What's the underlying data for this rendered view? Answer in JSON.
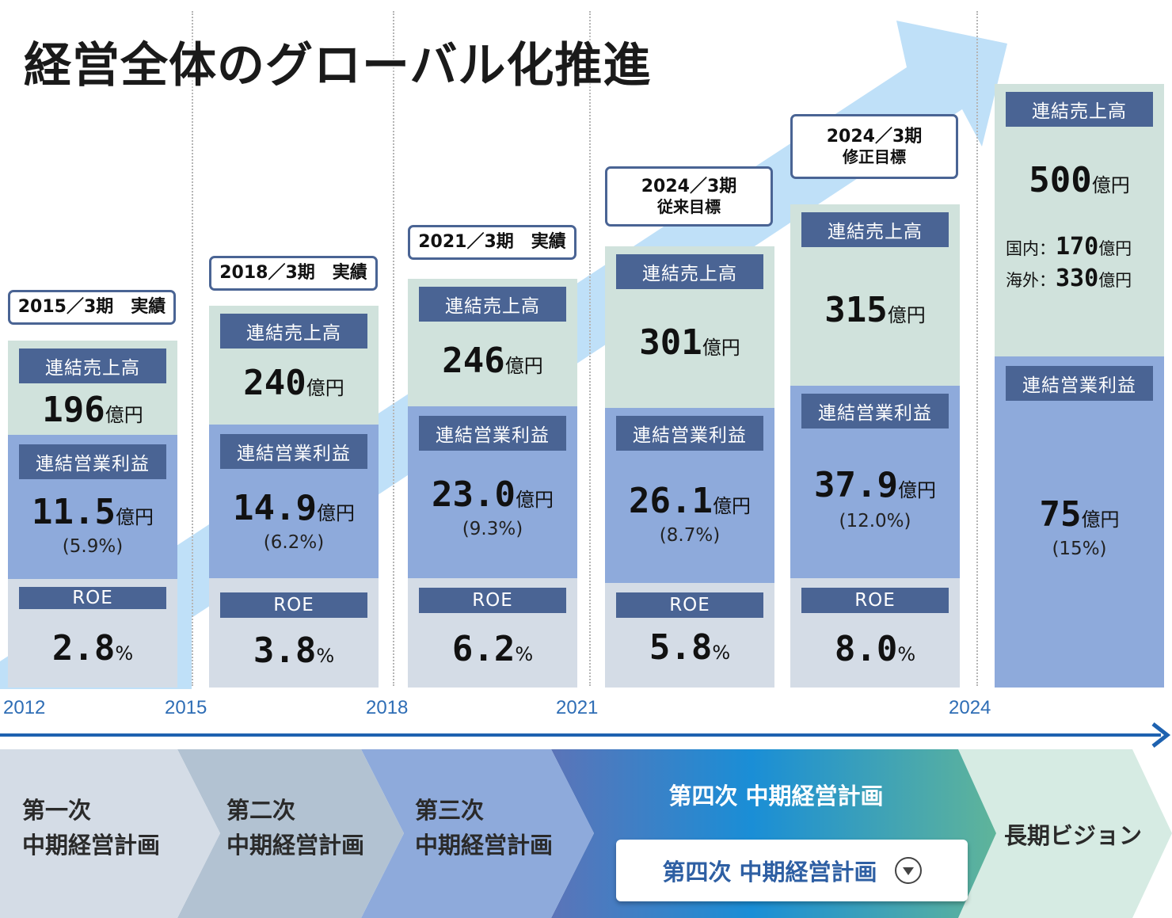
{
  "title": "経営全体のグローバル化推進",
  "colors": {
    "header": "#4a6494",
    "sales_bg": "#d0e2dc",
    "op_bg": "#8eaadb",
    "roe_bg": "#d4dce6",
    "arrow": "#bfe0f8",
    "year_text": "#2e6db5",
    "timeline": "#1e62b0"
  },
  "chart_data": {
    "type": "table",
    "columns": [
      {
        "label_line1": "2015／3期　実績",
        "sales": {
          "header": "連結売上高",
          "value": "196",
          "unit": "億円"
        },
        "op": {
          "header": "連結営業利益",
          "value": "11.5",
          "unit": "億円",
          "margin": "(5.9%)"
        },
        "roe": {
          "header": "ROE",
          "value": "2.8",
          "unit": "%"
        }
      },
      {
        "label_line1": "2018／3期　実績",
        "sales": {
          "header": "連結売上高",
          "value": "240",
          "unit": "億円"
        },
        "op": {
          "header": "連結営業利益",
          "value": "14.9",
          "unit": "億円",
          "margin": "(6.2%)"
        },
        "roe": {
          "header": "ROE",
          "value": "3.8",
          "unit": "%"
        }
      },
      {
        "label_line1": "2021／3期　実績",
        "sales": {
          "header": "連結売上高",
          "value": "246",
          "unit": "億円"
        },
        "op": {
          "header": "連結営業利益",
          "value": "23.0",
          "unit": "億円",
          "margin": "(9.3%)"
        },
        "roe": {
          "header": "ROE",
          "value": "6.2",
          "unit": "%"
        }
      },
      {
        "label_line1": "2024／3期",
        "label_line2": "従来目標",
        "sales": {
          "header": "連結売上高",
          "value": "301",
          "unit": "億円"
        },
        "op": {
          "header": "連結営業利益",
          "value": "26.1",
          "unit": "億円",
          "margin": "(8.7%)"
        },
        "roe": {
          "header": "ROE",
          "value": "5.8",
          "unit": "%"
        }
      },
      {
        "label_line1": "2024／3期",
        "label_line2": "修正目標",
        "sales": {
          "header": "連結売上高",
          "value": "315",
          "unit": "億円"
        },
        "op": {
          "header": "連結営業利益",
          "value": "37.9",
          "unit": "億円",
          "margin": "(12.0%)"
        },
        "roe": {
          "header": "ROE",
          "value": "8.0",
          "unit": "%"
        }
      },
      {
        "sales": {
          "header": "連結売上高",
          "value": "500",
          "unit": "億円",
          "domestic_label": "国内：",
          "domestic_value": "170",
          "domestic_unit": "億円",
          "overseas_label": "海外：",
          "overseas_value": "330",
          "overseas_unit": "億円"
        },
        "op": {
          "header": "連結営業利益",
          "value": "75",
          "unit": "億円",
          "margin": "(15%)"
        }
      }
    ],
    "years": [
      "2012",
      "2015",
      "2018",
      "2021",
      "2024"
    ]
  },
  "phases": [
    {
      "line1": "第一次",
      "line2": "中期経営計画"
    },
    {
      "line1": "第二次",
      "line2": "中期経営計画"
    },
    {
      "line1": "第三次",
      "line2": "中期経営計画"
    },
    {
      "title": "第四次 中期経営計画",
      "select_value": "第四次 中期経営計画"
    },
    {
      "line1": "長期ビジョン"
    }
  ]
}
